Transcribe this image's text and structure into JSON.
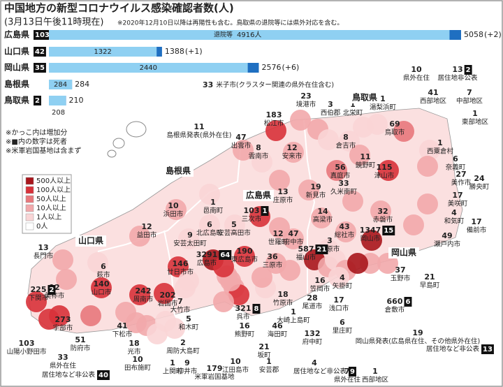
{
  "title": "中国地方の新型コロナウイルス感染確認者数(人)",
  "subtitle": "(3月13日午後11時現在)",
  "footnote": "※2020年12月10日以降は再陽性も含む。鳥取県の退院等には県外対応を含む。",
  "chart_data": {
    "type": "bar",
    "orientation": "horizontal",
    "categories": [
      "広島県",
      "山口県",
      "岡山県",
      "島根県",
      "鳥取県"
    ],
    "deaths": [
      103,
      42,
      35,
      null,
      2
    ],
    "series": [
      {
        "name": "退院等",
        "color": "#8fd0f2",
        "values": [
          4916,
          1322,
          2440,
          284,
          208
        ],
        "value_labels": [
          "4916人",
          "1322",
          "2440",
          "284",
          "208"
        ]
      }
    ],
    "totals": {
      "color": "#1f6fc1",
      "values": [
        5058,
        1388,
        2576,
        284,
        210
      ],
      "changes": [
        "(+2)",
        "(+1)",
        "(+6)",
        null,
        null
      ]
    }
  },
  "notes": [
    "※かっこ内は増加分",
    "※■内の数字は死者",
    "※米軍岩国基地は含まず"
  ],
  "map": {
    "type": "choropleth",
    "legend": [
      {
        "label": "500人以上",
        "min": 500,
        "color": "#a8161c"
      },
      {
        "label": "100人以上",
        "min": 100,
        "color": "#d8323a"
      },
      {
        "label": "50人以上",
        "min": 50,
        "color": "#e8787c"
      },
      {
        "label": "10人以上",
        "min": 10,
        "color": "#f2a8ab"
      },
      {
        "label": "1人以上",
        "min": 1,
        "color": "#f9d5d6"
      },
      {
        "label": "0人",
        "min": 0,
        "color": "#ffffff"
      }
    ],
    "prefecture_labels": [
      "島根県",
      "広島県",
      "山口県",
      "岡山県",
      "鳥取県"
    ],
    "regions": [
      {
        "name": "米子市(クラスター関連の県外在住含む)",
        "count": 33
      },
      {
        "name": "境港市",
        "count": 23
      },
      {
        "name": "西伯郡",
        "count": 3
      },
      {
        "name": "北栄町",
        "count": 1
      },
      {
        "name": "湯梨浜町",
        "count": 1
      },
      {
        "name": "県外在住",
        "count": 10
      },
      {
        "name": "居住地非公表",
        "count": 13,
        "deaths": 2
      },
      {
        "name": "西部地区",
        "count": 41
      },
      {
        "name": "中部地区",
        "count": 7
      },
      {
        "name": "東部地区",
        "count": 1
      },
      {
        "name": "松江市",
        "count": 183
      },
      {
        "name": "鳥取市",
        "count": 69
      },
      {
        "name": "島根県発表(県外在住)",
        "count": 11
      },
      {
        "name": "出雲市",
        "count": 47
      },
      {
        "name": "雲南市",
        "count": 8
      },
      {
        "name": "安来市",
        "count": 12
      },
      {
        "name": "倉吉市",
        "count": 8
      },
      {
        "name": "西粟倉村",
        "count": 1
      },
      {
        "name": "奈義町",
        "count": 6
      },
      {
        "name": "美作市",
        "count": 27
      },
      {
        "name": "勝央町",
        "count": 24
      },
      {
        "name": "美咲町",
        "count": 17
      },
      {
        "name": "和気町",
        "count": 4
      },
      {
        "name": "備前市",
        "count": 17
      },
      {
        "name": "瀬戸内市",
        "count": 49
      },
      {
        "name": "鏡野町",
        "count": 11
      },
      {
        "name": "津山市",
        "count": 115
      },
      {
        "name": "真庭市",
        "count": 56
      },
      {
        "name": "新見市",
        "count": 19
      },
      {
        "name": "久米南町",
        "count": 33
      },
      {
        "name": "庄原市",
        "count": 13
      },
      {
        "name": "浜田市",
        "count": 10
      },
      {
        "name": "邑南町",
        "count": 1
      },
      {
        "name": "北広島町",
        "count": 6
      },
      {
        "name": "安芸高田市",
        "count": 5
      },
      {
        "name": "益田市",
        "count": 12
      },
      {
        "name": "安芸太田町",
        "count": 9
      },
      {
        "name": "三次市",
        "count": 103,
        "deaths": 1
      },
      {
        "name": "世羅町",
        "count": 12
      },
      {
        "name": "府中市",
        "count": 47
      },
      {
        "name": "高梁市",
        "count": 14
      },
      {
        "name": "総社市",
        "count": 43
      },
      {
        "name": "赤磐市",
        "count": 32
      },
      {
        "name": "岡山市",
        "count": 1347,
        "deaths": 15
      },
      {
        "name": "井原市",
        "count": 3
      },
      {
        "name": "福山市",
        "count": 587,
        "deaths": 21
      },
      {
        "name": "三原市",
        "count": 36
      },
      {
        "name": "東広島市",
        "count": 190
      },
      {
        "name": "広島市",
        "count": 3291,
        "deaths": 64
      },
      {
        "name": "廿日市市",
        "count": 146
      },
      {
        "name": "長門市",
        "count": 13
      },
      {
        "name": "萩市",
        "count": 6
      },
      {
        "name": "山口市",
        "count": 140
      },
      {
        "name": "周南市",
        "count": 242
      },
      {
        "name": "岩国市",
        "count": 202
      },
      {
        "name": "美祢市",
        "count": 12
      },
      {
        "name": "下関市",
        "count": 225,
        "deaths": 2
      },
      {
        "name": "宇部市",
        "count": 273
      },
      {
        "name": "下松市",
        "count": 41
      },
      {
        "name": "防府市",
        "count": 51
      },
      {
        "name": "山陽小野田市",
        "count": 103
      },
      {
        "name": "光市",
        "count": 18
      },
      {
        "name": "田布施町",
        "count": 10
      },
      {
        "name": "県外在住",
        "count": 33
      },
      {
        "name": "居住地など非公表",
        "deaths": 40
      },
      {
        "name": "上関町",
        "count": 1
      },
      {
        "name": "周防大島町",
        "count": 2
      },
      {
        "name": "柳井市",
        "count": 9
      },
      {
        "name": "米軍岩国基地",
        "count": 179
      },
      {
        "name": "和木町",
        "count": 5
      },
      {
        "name": "大竹市",
        "count": 7
      },
      {
        "name": "坂町",
        "count": 21
      },
      {
        "name": "呉市",
        "count": 321,
        "deaths": 8
      },
      {
        "name": "熊野町",
        "count": 16
      },
      {
        "name": "海田町",
        "count": 46
      },
      {
        "name": "大崎上島町",
        "count": 1
      },
      {
        "name": "竹原市",
        "count": 18
      },
      {
        "name": "尾道市",
        "count": 28
      },
      {
        "name": "笠岡市",
        "count": 16
      },
      {
        "name": "矢掛町",
        "count": 4
      },
      {
        "name": "浅口市",
        "count": 17
      },
      {
        "name": "玉野市",
        "count": 37
      },
      {
        "name": "早島町",
        "count": 21
      },
      {
        "name": "倉敷市",
        "count": 660,
        "deaths": 6
      },
      {
        "name": "里庄町",
        "count": 6
      },
      {
        "name": "府中町",
        "count": 132
      },
      {
        "name": "江田島市",
        "count": 10
      },
      {
        "name": "安芸郡",
        "count": 1
      },
      {
        "name": "居住地など非公表",
        "count": 4,
        "deaths": 9
      },
      {
        "name": "県外在住",
        "count": 7
      },
      {
        "name": "西部地区",
        "count": 1
      },
      {
        "name": "岡山県発表(広島県在住、その他県外在住)",
        "count": 19
      },
      {
        "name": "居住地など非公表",
        "deaths": 13
      }
    ]
  }
}
